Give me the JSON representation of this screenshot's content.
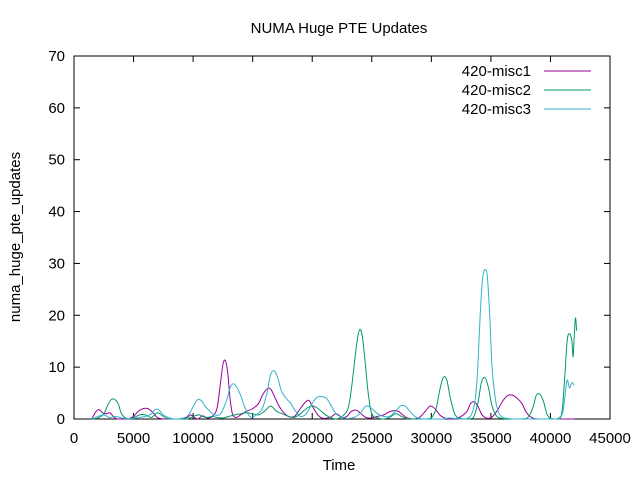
{
  "chart_data": {
    "type": "line",
    "title": "NUMA Huge PTE Updates",
    "xlabel": "Time",
    "ylabel": "numa_huge_pte_updates",
    "xlim": [
      0,
      45000
    ],
    "ylim": [
      0,
      70
    ],
    "xticks": [
      0,
      5000,
      10000,
      15000,
      20000,
      25000,
      30000,
      35000,
      40000,
      45000
    ],
    "yticks": [
      0,
      10,
      20,
      30,
      40,
      50,
      60,
      70
    ],
    "grid": false,
    "legend_position": "top-right",
    "series": [
      {
        "name": "420-misc1",
        "color": "#990099",
        "x": [
          1500,
          1800,
          2100,
          2400,
          2700,
          3000,
          3300,
          3600,
          3900,
          4500,
          5000,
          5400,
          5800,
          6200,
          6600,
          7000,
          7500,
          8000,
          8500,
          9000,
          9500,
          9800,
          10100,
          10400,
          10800,
          11200,
          11600,
          12000,
          12300,
          12500,
          12700,
          12900,
          13100,
          13300,
          13600,
          14000,
          14500,
          15000,
          15500,
          15800,
          16200,
          16500,
          16800,
          17100,
          17500,
          18000,
          18500,
          19000,
          19400,
          19700,
          20000,
          20400,
          20800,
          21500,
          22000,
          22500,
          22900,
          23300,
          23700,
          24000,
          24500,
          25000,
          25500,
          26000,
          26400,
          26800,
          27200,
          27600,
          28000,
          28500,
          29000,
          29500,
          29900,
          30300,
          30700,
          31100,
          31500,
          32000,
          32500,
          33000,
          33300,
          33600,
          33900,
          34200,
          34500,
          35000,
          35500,
          36000,
          36400,
          36800,
          37200,
          37600,
          38000,
          38500,
          39000,
          39500,
          40000,
          40500,
          41000,
          41500,
          42000
        ],
        "y": [
          0,
          1.3,
          1.8,
          1.2,
          1.0,
          1.2,
          0.5,
          0,
          0,
          0,
          0.5,
          1.5,
          2.0,
          2.0,
          1.3,
          0.3,
          0,
          0,
          0,
          0,
          0.3,
          0.8,
          0.3,
          0,
          0.6,
          0.2,
          0.5,
          2.0,
          7.0,
          10.5,
          11.3,
          9.0,
          4.0,
          1.0,
          0.3,
          0.8,
          1.5,
          2.0,
          3.0,
          4.5,
          5.8,
          5.8,
          4.5,
          3.0,
          1.5,
          0.5,
          0.5,
          2.0,
          3.2,
          3.6,
          2.5,
          1.0,
          0.2,
          0.3,
          1.0,
          0.3,
          0.5,
          1.5,
          1.7,
          1.2,
          0.3,
          0.2,
          0.5,
          0.8,
          1.3,
          1.6,
          1.5,
          0.8,
          0.2,
          0,
          0.3,
          1.5,
          2.5,
          2.0,
          0.8,
          0.2,
          0,
          0,
          0.5,
          1.5,
          3.0,
          3.3,
          2.5,
          1.0,
          0.3,
          0.2,
          1.5,
          3.5,
          4.5,
          4.6,
          4.0,
          3.0,
          1.2,
          0.2,
          0,
          0,
          0,
          0,
          0,
          0,
          0
        ]
      },
      {
        "name": "420-misc2",
        "color": "#009966",
        "x": [
          1500,
          2000,
          2500,
          2800,
          3100,
          3400,
          3700,
          4000,
          4500,
          5000,
          5500,
          6000,
          6500,
          7000,
          7500,
          8000,
          9000,
          9500,
          10000,
          10500,
          10800,
          11200,
          11600,
          12000,
          12500,
          13000,
          13500,
          14000,
          14500,
          15000,
          15500,
          16000,
          16500,
          17000,
          17500,
          18000,
          18500,
          19000,
          19500,
          20000,
          20500,
          21000,
          21500,
          22000,
          22500,
          23000,
          23300,
          23600,
          23800,
          24000,
          24200,
          24400,
          24700,
          25000,
          25500,
          26000,
          26500,
          27000,
          27500,
          28000,
          28500,
          29000,
          29500,
          30000,
          30400,
          30700,
          31000,
          31300,
          31600,
          32000,
          32500,
          33000,
          33500,
          33900,
          34200,
          34500,
          34800,
          35100,
          35500,
          36000,
          37000,
          38000,
          38500,
          38800,
          39100,
          39400,
          39700,
          40000,
          40500,
          40800,
          41000,
          41200,
          41400,
          41600,
          41800,
          41900,
          42000,
          42100,
          42200
        ],
        "y": [
          0,
          0.2,
          1.0,
          2.5,
          3.7,
          3.8,
          3.0,
          1.0,
          0,
          0.2,
          0.8,
          0.8,
          0.3,
          1.2,
          0.5,
          0,
          0,
          0,
          0.5,
          0.8,
          0.5,
          0.3,
          0.5,
          0.3,
          0.2,
          0.5,
          0.8,
          1.0,
          1.2,
          1.0,
          0.8,
          1.5,
          2.5,
          1.5,
          1.0,
          0.5,
          0.3,
          1.0,
          2.0,
          2.5,
          2.0,
          1.0,
          0.3,
          0,
          0.5,
          2.0,
          6.0,
          12.0,
          15.5,
          17.3,
          16.0,
          12.0,
          5.0,
          1.0,
          0.2,
          0,
          0.3,
          1.0,
          0.5,
          0,
          0,
          0,
          0,
          0.2,
          2.0,
          5.5,
          8.0,
          7.5,
          4.0,
          0.8,
          0.1,
          0,
          0.2,
          3.0,
          7.0,
          8.0,
          6.0,
          2.5,
          0.5,
          0.1,
          0,
          0.1,
          2.0,
          4.5,
          4.8,
          3.5,
          1.0,
          0.1,
          0,
          0,
          2.0,
          8.0,
          15.0,
          16.5,
          15.0,
          12.0,
          16.0,
          19.5,
          17.0
        ]
      },
      {
        "name": "420-misc3",
        "color": "#33b2cc",
        "x": [
          1500,
          2000,
          2500,
          3000,
          3500,
          4000,
          4500,
          5000,
          5500,
          6000,
          6500,
          6800,
          7100,
          7500,
          8000,
          8500,
          9000,
          9500,
          9800,
          10100,
          10400,
          10700,
          11000,
          11400,
          11800,
          12300,
          12800,
          13100,
          13400,
          13700,
          14000,
          14300,
          14600,
          14900,
          15300,
          15800,
          16200,
          16500,
          16800,
          17100,
          17400,
          17800,
          18200,
          18600,
          19000,
          19500,
          20000,
          20400,
          20800,
          21200,
          21600,
          22000,
          22500,
          23000,
          23500,
          24000,
          24500,
          25000,
          25500,
          26000,
          26500,
          27000,
          27400,
          27800,
          28200,
          28600,
          29000,
          29500,
          30000,
          30500,
          31000,
          31500,
          32000,
          32500,
          33000,
          33400,
          33700,
          33900,
          34100,
          34300,
          34500,
          34700,
          34900,
          35100,
          35400,
          35700,
          36000,
          36500,
          37000,
          37500,
          38000,
          38500,
          39000,
          39500,
          40000,
          40500,
          41000,
          41200,
          41400,
          41600,
          41800,
          42000
        ],
        "y": [
          0,
          0.5,
          0.8,
          0.3,
          0.5,
          0.2,
          0.1,
          0.1,
          0.3,
          0.5,
          1.0,
          1.8,
          1.8,
          0.8,
          0.2,
          0,
          0.1,
          0.5,
          1.5,
          2.8,
          3.8,
          3.5,
          2.5,
          1.5,
          0.8,
          1.0,
          3.5,
          6.0,
          6.8,
          6.0,
          4.5,
          2.5,
          1.0,
          0.3,
          0.8,
          2.0,
          5.0,
          8.5,
          9.3,
          8.0,
          5.5,
          4.0,
          3.0,
          1.5,
          0.5,
          1.0,
          3.0,
          4.2,
          4.3,
          4.0,
          2.5,
          1.0,
          0.3,
          0.1,
          0.3,
          1.0,
          2.5,
          2.0,
          1.0,
          0.5,
          0.5,
          1.5,
          2.5,
          2.5,
          1.5,
          0.5,
          0.1,
          0,
          0,
          0,
          0,
          0.2,
          0.1,
          0,
          0.1,
          1.0,
          4.0,
          10.0,
          20.0,
          27.0,
          28.8,
          27.5,
          20.0,
          10.0,
          3.5,
          1.0,
          0.3,
          0.1,
          0,
          0,
          0,
          0,
          0,
          0,
          0,
          0,
          1.0,
          4.0,
          7.5,
          6.0,
          7.0,
          6.5
        ]
      }
    ]
  }
}
